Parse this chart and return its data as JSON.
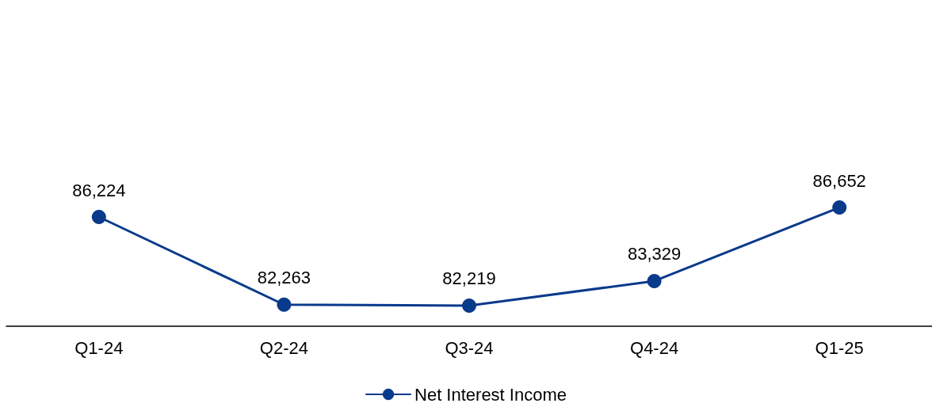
{
  "chart_data": {
    "type": "line",
    "categories": [
      "Q1-24",
      "Q2-24",
      "Q3-24",
      "Q4-24",
      "Q1-25"
    ],
    "series": [
      {
        "name": "Net Interest Income",
        "color": "#0a3a8c",
        "values": [
          86224,
          82263,
          82219,
          83329,
          86652
        ],
        "value_labels": [
          "86,224",
          "82,263",
          "82,219",
          "83,329",
          "86,652"
        ]
      }
    ],
    "legend": "bottom",
    "marker": "circle",
    "line_style": "solid",
    "grid": false
  }
}
